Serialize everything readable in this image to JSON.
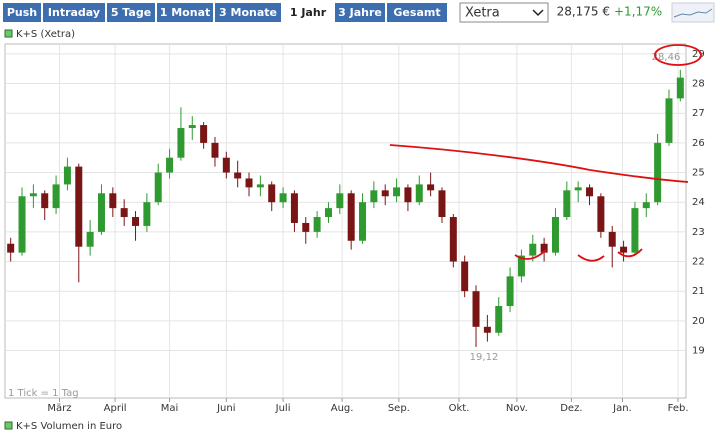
{
  "toolbar": {
    "buttons": [
      "Push",
      "Intraday",
      "5 Tage",
      "1 Monat",
      "3 Monate",
      "1 Jahr",
      "3 Jahre",
      "Gesamt"
    ],
    "exchange": "Xetra",
    "price": "28,175 €",
    "change": "+1,17%"
  },
  "chart_data": {
    "type": "candlestick",
    "series": [
      {
        "name": "K+S (Xetra)",
        "up_color": "#2f9a2f",
        "down_color": "#7a1515",
        "candles": [
          [
            22.6,
            22.8,
            22.0,
            22.3
          ],
          [
            22.3,
            24.5,
            22.2,
            24.2
          ],
          [
            24.2,
            24.6,
            23.8,
            24.3
          ],
          [
            24.3,
            24.4,
            23.4,
            23.8
          ],
          [
            23.8,
            24.9,
            23.6,
            24.6
          ],
          [
            24.6,
            25.5,
            24.4,
            25.2
          ],
          [
            25.2,
            25.3,
            21.3,
            22.5
          ],
          [
            22.5,
            23.4,
            22.2,
            23.0
          ],
          [
            23.0,
            24.6,
            22.9,
            24.3
          ],
          [
            24.3,
            24.5,
            23.5,
            23.8
          ],
          [
            23.8,
            24.1,
            23.2,
            23.5
          ],
          [
            23.5,
            23.7,
            22.7,
            23.2
          ],
          [
            23.2,
            24.3,
            23.0,
            24.0
          ],
          [
            24.0,
            25.3,
            23.9,
            25.0
          ],
          [
            25.0,
            25.8,
            24.8,
            25.5
          ],
          [
            25.5,
            27.2,
            25.4,
            26.5
          ],
          [
            26.5,
            26.9,
            26.1,
            26.6
          ],
          [
            26.6,
            26.7,
            25.8,
            26.0
          ],
          [
            26.0,
            26.2,
            25.2,
            25.5
          ],
          [
            25.5,
            25.7,
            24.8,
            25.0
          ],
          [
            25.0,
            25.4,
            24.5,
            24.8
          ],
          [
            24.8,
            25.0,
            24.2,
            24.5
          ],
          [
            24.5,
            24.9,
            24.2,
            24.6
          ],
          [
            24.6,
            24.7,
            23.7,
            24.0
          ],
          [
            24.0,
            24.5,
            23.8,
            24.3
          ],
          [
            24.3,
            24.4,
            23.0,
            23.3
          ],
          [
            23.3,
            23.5,
            22.6,
            23.0
          ],
          [
            23.0,
            23.7,
            22.8,
            23.5
          ],
          [
            23.5,
            24.0,
            23.3,
            23.8
          ],
          [
            23.8,
            24.6,
            23.6,
            24.3
          ],
          [
            24.3,
            24.4,
            22.4,
            22.7
          ],
          [
            22.7,
            24.3,
            22.6,
            24.0
          ],
          [
            24.0,
            24.7,
            23.8,
            24.4
          ],
          [
            24.4,
            24.6,
            23.9,
            24.2
          ],
          [
            24.2,
            24.8,
            24.0,
            24.5
          ],
          [
            24.5,
            24.6,
            23.7,
            24.0
          ],
          [
            24.0,
            24.9,
            23.9,
            24.6
          ],
          [
            24.6,
            25.0,
            24.2,
            24.4
          ],
          [
            24.4,
            24.5,
            23.3,
            23.5
          ],
          [
            23.5,
            23.6,
            21.8,
            22.0
          ],
          [
            22.0,
            22.2,
            20.8,
            21.0
          ],
          [
            21.0,
            21.2,
            19.12,
            19.8
          ],
          [
            19.8,
            20.2,
            19.3,
            19.6
          ],
          [
            19.6,
            20.8,
            19.5,
            20.5
          ],
          [
            20.5,
            21.8,
            20.3,
            21.5
          ],
          [
            21.5,
            22.4,
            21.3,
            22.2
          ],
          [
            22.2,
            22.9,
            22.0,
            22.6
          ],
          [
            22.6,
            22.8,
            22.0,
            22.3
          ],
          [
            22.3,
            23.8,
            22.2,
            23.5
          ],
          [
            23.5,
            24.7,
            23.4,
            24.4
          ],
          [
            24.4,
            24.7,
            24.0,
            24.5
          ],
          [
            24.5,
            24.6,
            23.9,
            24.2
          ],
          [
            24.2,
            24.3,
            22.8,
            23.0
          ],
          [
            23.0,
            23.2,
            21.8,
            22.5
          ],
          [
            22.5,
            22.7,
            22.0,
            22.3
          ],
          [
            22.3,
            24.0,
            22.2,
            23.8
          ],
          [
            23.8,
            24.3,
            23.5,
            24.0
          ],
          [
            24.0,
            26.3,
            23.9,
            26.0
          ],
          [
            26.0,
            27.8,
            25.9,
            27.5
          ],
          [
            27.5,
            28.46,
            27.4,
            28.2
          ]
        ]
      }
    ],
    "xlim": [
      0,
      60
    ],
    "xticks": [
      {
        "value": 4.8,
        "label": "März"
      },
      {
        "value": 9.7,
        "label": "April"
      },
      {
        "value": 14.5,
        "label": "Mai"
      },
      {
        "value": 19.5,
        "label": "Juni"
      },
      {
        "value": 24.5,
        "label": "Juli"
      },
      {
        "value": 29.7,
        "label": "Aug."
      },
      {
        "value": 34.7,
        "label": "Sep."
      },
      {
        "value": 40,
        "label": "Okt."
      },
      {
        "value": 45.1,
        "label": "Nov."
      },
      {
        "value": 49.9,
        "label": "Dez."
      },
      {
        "value": 54.4,
        "label": "Jan."
      },
      {
        "value": 59.3,
        "label": "Feb."
      }
    ],
    "ylim": [
      17.4,
      29.4
    ],
    "yticks": [
      19,
      20,
      21,
      22,
      23,
      24,
      25,
      26,
      27,
      28,
      29
    ],
    "grid": true,
    "annotations": [
      "28,46",
      "19,12"
    ],
    "footnote": "1 Tick = 1 Tag",
    "volume_legend": "K+S Volumen in Euro"
  }
}
